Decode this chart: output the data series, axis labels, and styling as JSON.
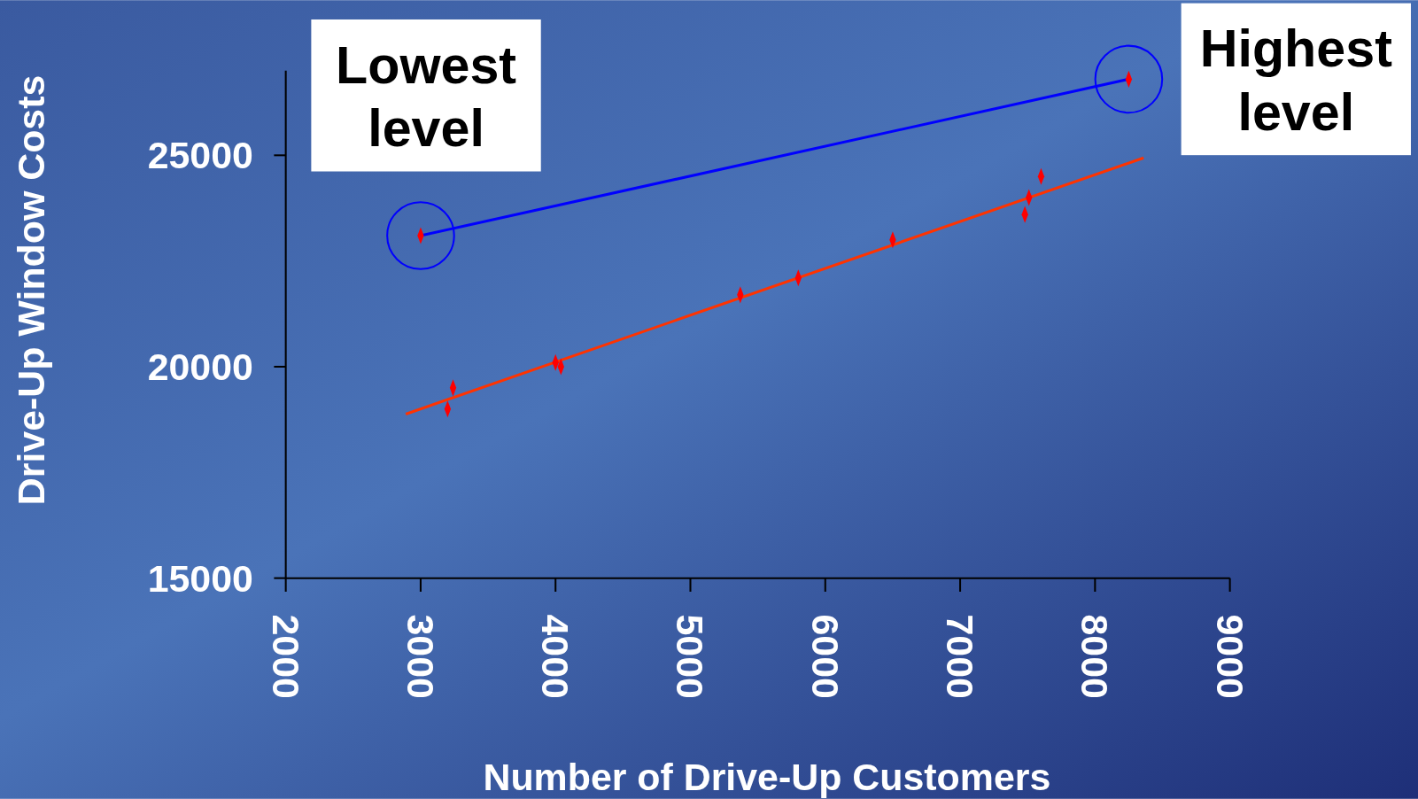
{
  "chart_data": {
    "type": "scatter",
    "xlabel": "Number of Drive-Up Customers",
    "ylabel": "Drive-Up Window Costs",
    "xlim": [
      2000,
      9000
    ],
    "xticks": [
      2000,
      3000,
      4000,
      5000,
      6000,
      7000,
      8000,
      9000
    ],
    "ylim": [
      15000,
      27000
    ],
    "yticks": [
      15000,
      20000,
      25000
    ],
    "grid": false,
    "series": [
      {
        "marker": "diamond",
        "color": "#ff0000",
        "x": [
          3000,
          3200,
          3240,
          4000,
          4040,
          5370,
          5800,
          6500,
          7480,
          7510,
          7600,
          8250
        ],
        "values": [
          23100,
          19000,
          19500,
          20100,
          20000,
          21700,
          22100,
          23000,
          23600,
          24000,
          24500,
          26800
        ]
      },
      {
        "type": "line",
        "marker": "circle",
        "color": "#0000ff",
        "x": [
          3000,
          8250
        ],
        "values": [
          23100,
          26800
        ]
      },
      {
        "type": "line",
        "marker": "none",
        "color": "#ff3300",
        "x": [
          2890,
          8360
        ],
        "values": [
          18880,
          24940
        ]
      }
    ],
    "annotations": [
      {
        "text": "Lowest level",
        "x": 3000,
        "y": 23100
      },
      {
        "text": "Highest level",
        "x": 8250,
        "y": 26800
      }
    ]
  }
}
